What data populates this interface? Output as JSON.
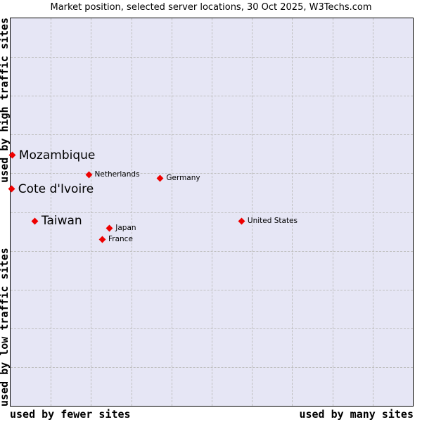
{
  "title": "Market position, selected server locations, 30 Oct 2025, W3Techs.com",
  "axes": {
    "y_top_label": "used by high traffic sites",
    "y_bottom_label": "used by low traffic sites",
    "x_left_label": "used by fewer sites",
    "x_right_label": "used by many sites"
  },
  "colors": {
    "plot_background": "#e6e6f5",
    "grid": "#bfbfbf",
    "marker": "#ee0000",
    "text": "#000000",
    "page_background": "#ffffff"
  },
  "chart_data": {
    "type": "scatter",
    "title": "Market position, selected server locations, 30 Oct 2025, W3Techs.com",
    "x_axis": {
      "label_left": "used by fewer sites",
      "label_right": "used by many sites",
      "range_pct": [
        0,
        100
      ],
      "numeric_ticks": false
    },
    "y_axis": {
      "label_top": "used by high traffic sites",
      "label_bottom": "used by low traffic sites",
      "range_pct": [
        0,
        100
      ],
      "numeric_ticks": false
    },
    "grid": {
      "visible": true,
      "style": "dashed",
      "spacing_pct": 10
    },
    "legend": "none",
    "marker_shape": "diamond",
    "points_note": "x_pct measured from left edge (fewer→many sites); y_pct measured from top edge (high→low traffic)",
    "points": [
      {
        "label": "Mozambique",
        "x_pct": 0.5,
        "y_pct": 35.3,
        "emphasis": "large"
      },
      {
        "label": "Cote d'Ivoire",
        "x_pct": 0.3,
        "y_pct": 44.1,
        "emphasis": "large"
      },
      {
        "label": "Taiwan",
        "x_pct": 6.1,
        "y_pct": 52.3,
        "emphasis": "large"
      },
      {
        "label": "Netherlands",
        "x_pct": 19.5,
        "y_pct": 40.3,
        "emphasis": "small"
      },
      {
        "label": "Germany",
        "x_pct": 37.3,
        "y_pct": 41.2,
        "emphasis": "small"
      },
      {
        "label": "Japan",
        "x_pct": 24.7,
        "y_pct": 54.1,
        "emphasis": "small"
      },
      {
        "label": "France",
        "x_pct": 22.9,
        "y_pct": 57.0,
        "emphasis": "small"
      },
      {
        "label": "United States",
        "x_pct": 57.5,
        "y_pct": 52.3,
        "emphasis": "small"
      }
    ]
  }
}
